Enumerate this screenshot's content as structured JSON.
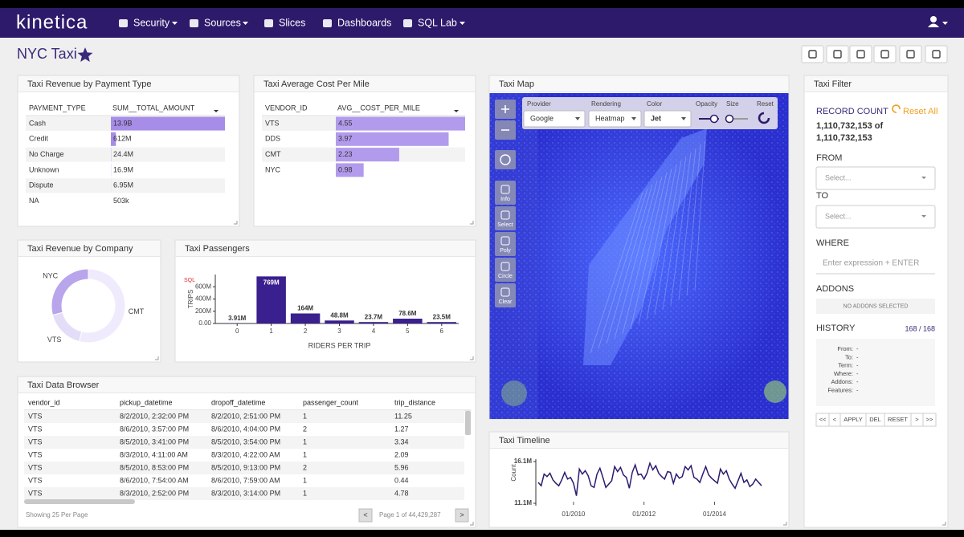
{
  "nav": {
    "brand": "kinetica",
    "items": [
      "Security",
      "Sources",
      "Slices",
      "Dashboards",
      "SQL Lab"
    ]
  },
  "header": {
    "title": "NYC Taxi"
  },
  "chart_data": [
    {
      "type": "bar",
      "orientation": "horizontal",
      "title": "Taxi Revenue by Payment Type",
      "category_header": "PAYMENT_TYPE",
      "value_header": "SUM__TOTAL_AMOUNT",
      "categories": [
        "Cash",
        "Credit",
        "No Charge",
        "Unknown",
        "Dispute",
        "NA"
      ],
      "values": [
        13900000000,
        612000000,
        24400000,
        16900000,
        6950000,
        503000
      ],
      "value_labels": [
        "13.9B",
        "612M",
        "24.4M",
        "16.9M",
        "6.95M",
        "503k"
      ],
      "xlim": [
        0,
        13900000000
      ],
      "color": "#a78de8"
    },
    {
      "type": "bar",
      "orientation": "horizontal",
      "title": "Taxi Average Cost Per Mile",
      "category_header": "VENDOR_ID",
      "value_header": "AVG__COST_PER_MILE",
      "categories": [
        "VTS",
        "DDS",
        "CMT",
        "NYC"
      ],
      "values": [
        4.55,
        3.97,
        2.23,
        0.98
      ],
      "xlim": [
        0,
        4.55
      ],
      "color": "#b29bec"
    },
    {
      "type": "pie",
      "title": "Taxi Revenue by Company",
      "donut": true,
      "categories": [
        "CMT",
        "VTS",
        "NYC"
      ],
      "values": [
        54,
        17,
        29
      ],
      "colors": [
        "#efebfc",
        "#e4ddf8",
        "#b8a5ec"
      ]
    },
    {
      "type": "bar",
      "orientation": "vertical",
      "title": "Taxi Passengers",
      "tag": "SQL",
      "x_label": "RIDERS PER TRIP",
      "y_label": "TRIPS",
      "x": [
        0,
        1,
        2,
        3,
        4,
        5,
        6
      ],
      "values": [
        3910000,
        769000000,
        164000000,
        48800000,
        23700000,
        78600000,
        23500000
      ],
      "value_labels": [
        "3.91M",
        "769M",
        "164M",
        "48.8M",
        "23.7M",
        "78.6M",
        "23.5M"
      ],
      "xlim": [
        -0.5,
        6.5
      ],
      "xticks": [
        0,
        1,
        2,
        3,
        4,
        5,
        6
      ],
      "ylim": [
        0,
        800000000
      ],
      "yticks": [
        {
          "value": 0,
          "label": "0.00"
        },
        {
          "value": 200000000,
          "label": "200M"
        },
        {
          "value": 400000000,
          "label": "400M"
        },
        {
          "value": 600000000,
          "label": "600M"
        }
      ],
      "color": "#3a1f8e"
    },
    {
      "type": "line",
      "title": "Taxi Timeline",
      "y_label": "Count",
      "x": [
        "01/2009",
        "02/2009",
        "03/2009",
        "04/2009",
        "05/2009",
        "06/2009",
        "07/2009",
        "08/2009",
        "09/2009",
        "10/2009",
        "11/2009",
        "12/2009",
        "01/2010",
        "02/2010",
        "03/2010",
        "04/2010",
        "05/2010",
        "06/2010",
        "07/2010",
        "08/2010",
        "09/2010",
        "10/2010",
        "11/2010",
        "12/2010",
        "01/2011",
        "02/2011",
        "03/2011",
        "04/2011",
        "05/2011",
        "06/2011",
        "07/2011",
        "08/2011",
        "09/2011",
        "10/2011",
        "11/2011",
        "12/2011",
        "01/2012",
        "02/2012",
        "03/2012",
        "04/2012",
        "05/2012",
        "06/2012",
        "07/2012",
        "08/2012",
        "09/2012",
        "10/2012",
        "11/2012",
        "12/2012",
        "01/2013",
        "02/2013",
        "03/2013",
        "04/2013",
        "05/2013",
        "06/2013",
        "07/2013",
        "08/2013",
        "09/2013",
        "10/2013",
        "11/2013",
        "12/2013",
        "01/2014",
        "02/2014",
        "03/2014",
        "04/2014",
        "05/2014",
        "06/2014",
        "07/2014",
        "08/2014",
        "09/2014",
        "10/2014",
        "11/2014",
        "12/2014",
        "01/2015",
        "02/2015",
        "03/2015",
        "04/2015",
        "05/2015"
      ],
      "values": [
        13600000,
        13200000,
        14600000,
        14300000,
        14700000,
        13900000,
        13500000,
        13200000,
        13900000,
        14800000,
        14000000,
        14200000,
        13500000,
        12000000,
        15200000,
        14600000,
        15000000,
        14400000,
        13200000,
        13000000,
        14600000,
        15300000,
        14200000,
        13000000,
        13400000,
        13800000,
        15500000,
        14900000,
        15400000,
        14500000,
        14200000,
        12900000,
        14800000,
        15700000,
        14500000,
        14600000,
        14000000,
        14700000,
        15900000,
        15100000,
        15600000,
        14700000,
        14300000,
        14000000,
        14900000,
        14800000,
        13500000,
        14600000,
        14100000,
        14300000,
        15500000,
        15100000,
        15600000,
        14200000,
        14000000,
        13600000,
        14600000,
        15500000,
        14500000,
        14100000,
        13800000,
        13500000,
        15200000,
        14600000,
        15000000,
        14000000,
        13400000,
        12900000,
        13800000,
        14700000,
        13600000,
        13900000,
        13100000,
        13400000,
        14000000,
        13600000,
        13200000
      ],
      "xticks": [
        "01/2010",
        "01/2012",
        "01/2014"
      ],
      "ylim": [
        11100000,
        16100000
      ],
      "yticks": [
        {
          "value": 11100000,
          "label": "11.1M"
        },
        {
          "value": 16100000,
          "label": "16.1M"
        }
      ],
      "color": "#2c1a6e"
    }
  ],
  "map": {
    "title": "Taxi Map",
    "controls": [
      "Provider",
      "Rendering",
      "Color",
      "Opacity",
      "Size",
      "Reset"
    ],
    "selects": [
      "Google",
      "Heatmap",
      "Jet"
    ],
    "tools": [
      "Info",
      "Select",
      "Poly",
      "Circle",
      "Clear"
    ]
  },
  "table": {
    "title": "Taxi Data Browser",
    "columns": [
      "vendor_id",
      "pickup_datetime",
      "dropoff_datetime",
      "passenger_count",
      "trip_distance"
    ],
    "rows": [
      [
        "VTS",
        "8/2/2010, 2:32:00 PM",
        "8/2/2010, 2:51:00 PM",
        "1",
        "11.25"
      ],
      [
        "VTS",
        "8/6/2010, 3:57:00 PM",
        "8/6/2010, 4:04:00 PM",
        "2",
        "1.27"
      ],
      [
        "VTS",
        "8/5/2010, 3:41:00 PM",
        "8/5/2010, 3:54:00 PM",
        "1",
        "3.34"
      ],
      [
        "VTS",
        "8/3/2010, 4:11:00 AM",
        "8/3/2010, 4:22:00 AM",
        "1",
        "2.09"
      ],
      [
        "VTS",
        "8/5/2010, 8:53:00 PM",
        "8/5/2010, 9:13:00 PM",
        "2",
        "5.96"
      ],
      [
        "VTS",
        "8/6/2010, 7:54:00 AM",
        "8/6/2010, 7:59:00 AM",
        "1",
        "0.44"
      ],
      [
        "VTS",
        "8/3/2010, 2:52:00 PM",
        "8/3/2010, 3:14:00 PM",
        "1",
        "4.78"
      ]
    ],
    "footer": "Showing 25 Per Page",
    "pager": "Page 1 of 44,429,287",
    "prev": "<",
    "next": ">"
  },
  "filter": {
    "title": "Taxi Filter",
    "record_count_label": "RECORD COUNT",
    "reset_all": "Reset All",
    "count": "1,110,732,153 of",
    "total": "1,110,732,153",
    "from_label": "FROM",
    "from_placeholder": "Select...",
    "to_label": "TO",
    "to_placeholder": "Select...",
    "where_label": "WHERE",
    "where_placeholder": "Enter expression + ENTER",
    "addons_label": "ADDONS",
    "addons_empty": "NO ADDONS SELECTED",
    "history_label": "HISTORY",
    "history_count": "168 / 168",
    "history_fields": [
      "From:",
      "To:",
      "Term:",
      "Where:",
      "Addons:",
      "Features:"
    ],
    "history_values": [
      "-",
      "-",
      "-",
      "-",
      "-",
      "-"
    ],
    "buttons": [
      "<<",
      "<",
      "APPLY",
      "DEL",
      "RESET",
      ">",
      ">>"
    ]
  }
}
